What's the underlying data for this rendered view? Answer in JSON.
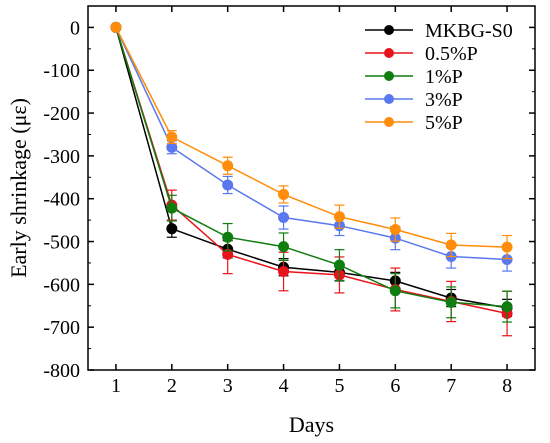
{
  "chart_data": {
    "type": "line",
    "title": "",
    "xlabel": "Days",
    "ylabel": "Early shrinkage (με)",
    "xlim": [
      0.5,
      8.5
    ],
    "ylim": [
      -800,
      50
    ],
    "xticks": [
      1,
      2,
      3,
      4,
      5,
      6,
      7,
      8
    ],
    "yticks": [
      0,
      -100,
      -200,
      -300,
      -400,
      -500,
      -600,
      -700,
      -800
    ],
    "legend": "top-right",
    "grid": false,
    "series": [
      {
        "name": "MKBG-S0",
        "color": "#000000",
        "x": [
          1,
          2,
          3,
          4,
          5,
          6,
          7,
          8
        ],
        "y": [
          0,
          -470,
          -518,
          -560,
          -572,
          -592,
          -632,
          -655
        ],
        "error": [
          0,
          20,
          20,
          20,
          20,
          20,
          20,
          20
        ]
      },
      {
        "name": "0.5%P",
        "color": "#e8141c",
        "x": [
          1,
          2,
          3,
          4,
          5,
          6,
          7,
          8
        ],
        "y": [
          0,
          -415,
          -530,
          -570,
          -578,
          -612,
          -640,
          -668
        ],
        "error": [
          0,
          35,
          45,
          45,
          42,
          50,
          47,
          52
        ]
      },
      {
        "name": "1%P",
        "color": "#0f7d0f",
        "x": [
          1,
          2,
          3,
          4,
          5,
          6,
          7,
          8
        ],
        "y": [
          0,
          -422,
          -490,
          -512,
          -555,
          -615,
          -642,
          -652
        ],
        "error": [
          0,
          30,
          32,
          32,
          36,
          40,
          36,
          36
        ]
      },
      {
        "name": "3%P",
        "color": "#5a78ee",
        "x": [
          1,
          2,
          3,
          4,
          5,
          6,
          7,
          8
        ],
        "y": [
          0,
          -280,
          -368,
          -444,
          -463,
          -492,
          -535,
          -542
        ],
        "error": [
          0,
          15,
          20,
          27,
          23,
          27,
          27,
          27
        ]
      },
      {
        "name": "5%P",
        "color": "#ff8c0a",
        "x": [
          1,
          2,
          3,
          4,
          5,
          6,
          7,
          8
        ],
        "y": [
          0,
          -256,
          -323,
          -390,
          -442,
          -472,
          -508,
          -513
        ],
        "error": [
          0,
          15,
          20,
          20,
          27,
          27,
          27,
          27
        ]
      }
    ]
  }
}
